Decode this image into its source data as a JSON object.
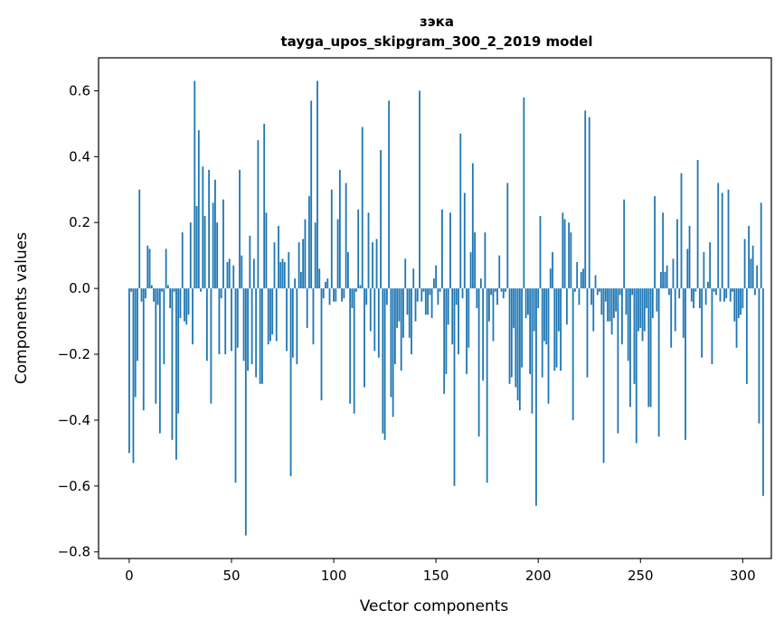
{
  "chart_data": {
    "type": "bar",
    "title": "зэка",
    "subtitle": "tayga_upos_skipgram_300_2_2019 model",
    "xlabel": "Vector components",
    "ylabel": "Components values",
    "xlim": [
      -15,
      314
    ],
    "ylim": [
      -0.82,
      0.7
    ],
    "xticks": [
      0,
      50,
      100,
      150,
      200,
      250,
      300
    ],
    "xtick_labels": [
      "0",
      "50",
      "100",
      "150",
      "200",
      "250",
      "300"
    ],
    "yticks": [
      -0.8,
      -0.6,
      -0.4,
      -0.2,
      0.0,
      0.2,
      0.4,
      0.6
    ],
    "ytick_labels": [
      "−0.8",
      "−0.6",
      "−0.4",
      "−0.2",
      "0.0",
      "0.2",
      "0.4",
      "0.6"
    ],
    "grid": false,
    "bar_color": "#1f77b4",
    "series": [
      {
        "values": [
          -0.5,
          -0.01,
          -0.53,
          -0.33,
          -0.22,
          0.3,
          -0.04,
          -0.37,
          -0.03,
          0.13,
          0.12,
          0.01,
          -0.04,
          -0.35,
          -0.05,
          -0.44,
          -0.01,
          -0.23,
          0.12,
          0.01,
          -0.06,
          -0.46,
          -0.01,
          -0.52,
          -0.38,
          -0.09,
          0.17,
          -0.1,
          -0.11,
          -0.08,
          0.2,
          -0.17,
          0.63,
          0.25,
          0.48,
          -0.01,
          0.37,
          0.22,
          -0.22,
          0.36,
          -0.35,
          0.26,
          0.33,
          0.2,
          -0.2,
          -0.03,
          0.27,
          -0.2,
          0.08,
          0.09,
          -0.19,
          0.07,
          -0.59,
          -0.18,
          0.36,
          0.1,
          -0.22,
          -0.75,
          -0.25,
          0.16,
          -0.23,
          0.09,
          -0.27,
          0.45,
          -0.29,
          -0.29,
          0.5,
          0.23,
          -0.17,
          -0.16,
          -0.14,
          0.14,
          -0.16,
          0.19,
          0.08,
          0.09,
          0.08,
          -0.19,
          0.11,
          -0.57,
          -0.21,
          0.03,
          -0.23,
          0.14,
          0.05,
          0.15,
          0.21,
          -0.12,
          0.28,
          0.57,
          -0.17,
          0.2,
          0.63,
          0.06,
          -0.34,
          -0.03,
          0.02,
          0.03,
          -0.05,
          0.3,
          -0.04,
          -0.04,
          0.21,
          0.36,
          -0.04,
          -0.03,
          0.32,
          0.11,
          -0.35,
          -0.06,
          -0.38,
          -0.01,
          0.24,
          0.01,
          0.49,
          -0.3,
          -0.05,
          0.23,
          -0.13,
          0.14,
          -0.19,
          0.15,
          -0.21,
          0.42,
          -0.44,
          -0.46,
          -0.05,
          0.57,
          -0.33,
          -0.39,
          -0.23,
          -0.12,
          -0.1,
          -0.25,
          -0.15,
          0.09,
          -0.08,
          -0.15,
          -0.2,
          0.06,
          -0.1,
          -0.04,
          0.6,
          -0.04,
          -0.01,
          -0.08,
          -0.08,
          -0.02,
          -0.09,
          0.03,
          0.07,
          -0.05,
          -0.01,
          0.24,
          -0.32,
          -0.26,
          -0.11,
          0.23,
          -0.17,
          -0.6,
          -0.05,
          -0.2,
          0.47,
          -0.03,
          0.29,
          -0.26,
          -0.18,
          0.11,
          0.38,
          0.17,
          -0.06,
          -0.45,
          0.03,
          -0.28,
          0.17,
          -0.59,
          -0.1,
          -0.02,
          -0.16,
          -0.01,
          -0.05,
          0.1,
          -0.01,
          -0.03,
          -0.01,
          0.32,
          -0.29,
          -0.27,
          -0.12,
          -0.3,
          -0.34,
          -0.37,
          -0.24,
          0.58,
          -0.09,
          -0.08,
          -0.26,
          -0.38,
          -0.13,
          -0.66,
          -0.06,
          0.22,
          -0.27,
          -0.16,
          -0.17,
          -0.35,
          0.06,
          0.11,
          -0.25,
          -0.24,
          -0.13,
          -0.25,
          0.23,
          0.21,
          -0.11,
          0.2,
          0.17,
          -0.4,
          -0.01,
          0.08,
          -0.05,
          0.05,
          0.06,
          0.54,
          -0.27,
          0.52,
          -0.05,
          -0.13,
          0.04,
          -0.02,
          -0.01,
          -0.08,
          -0.53,
          -0.04,
          -0.1,
          -0.1,
          -0.14,
          -0.09,
          -0.07,
          -0.44,
          -0.02,
          -0.17,
          0.27,
          -0.08,
          -0.22,
          -0.36,
          -0.02,
          -0.29,
          -0.47,
          -0.13,
          -0.12,
          -0.16,
          -0.13,
          -0.06,
          -0.36,
          -0.36,
          -0.09,
          0.28,
          -0.07,
          -0.45,
          0.05,
          0.23,
          0.05,
          0.07,
          -0.02,
          -0.18,
          0.09,
          -0.13,
          0.21,
          -0.03,
          0.35,
          -0.15,
          -0.46,
          0.12,
          0.19,
          -0.04,
          -0.06,
          -0.01,
          0.39,
          -0.06,
          -0.21,
          0.11,
          -0.05,
          0.02,
          0.14,
          -0.23,
          -0.01,
          -0.02,
          0.32,
          -0.04,
          0.29,
          -0.04,
          -0.03,
          0.3,
          -0.04,
          -0.01,
          -0.1,
          -0.18,
          -0.09,
          -0.08,
          -0.06,
          0.15,
          -0.29,
          0.19,
          0.09,
          0.13,
          -0.02,
          0.07,
          -0.41,
          0.26,
          -0.63
        ]
      }
    ]
  }
}
